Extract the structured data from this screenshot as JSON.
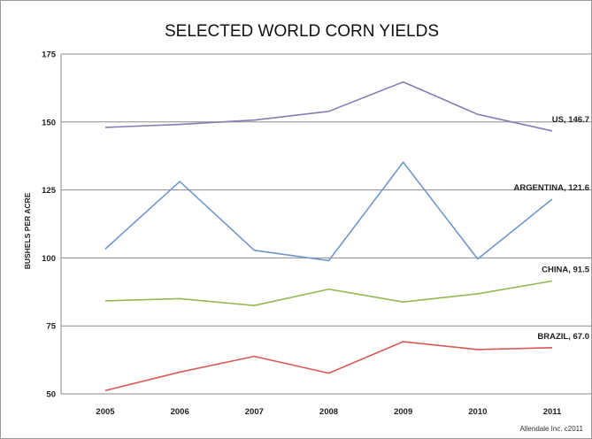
{
  "chart_data": {
    "type": "line",
    "title": "SELECTED WORLD CORN YIELDS",
    "ylabel": "BUSHELS PER ACRE",
    "xlabel": "",
    "x": [
      "2005",
      "2006",
      "2007",
      "2008",
      "2009",
      "2010",
      "2011"
    ],
    "ylim": [
      50,
      175
    ],
    "yticks": [
      50,
      75,
      100,
      125,
      150,
      175
    ],
    "grid": true,
    "series": [
      {
        "name": "US",
        "label": "US, 146.7",
        "color": "#8c79b5",
        "values": [
          148.0,
          149.1,
          150.7,
          153.9,
          164.7,
          152.8,
          146.7
        ]
      },
      {
        "name": "ARGENTINA",
        "label": "ARGENTINA, 121.6",
        "color": "#7197c9",
        "values": [
          103.3,
          128.1,
          102.8,
          99.0,
          135.2,
          99.6,
          121.6
        ]
      },
      {
        "name": "CHINA",
        "label": "CHINA, 91.5",
        "color": "#94b84f",
        "values": [
          84.2,
          85.0,
          82.5,
          88.5,
          83.8,
          86.8,
          91.5
        ]
      },
      {
        "name": "BRAZIL",
        "label": "BRAZIL, 67.0",
        "color": "#d85a55",
        "values": [
          51.2,
          58.0,
          63.8,
          57.6,
          69.2,
          66.3,
          67.0
        ]
      }
    ],
    "credit": "Allendale Inc. c2011"
  }
}
